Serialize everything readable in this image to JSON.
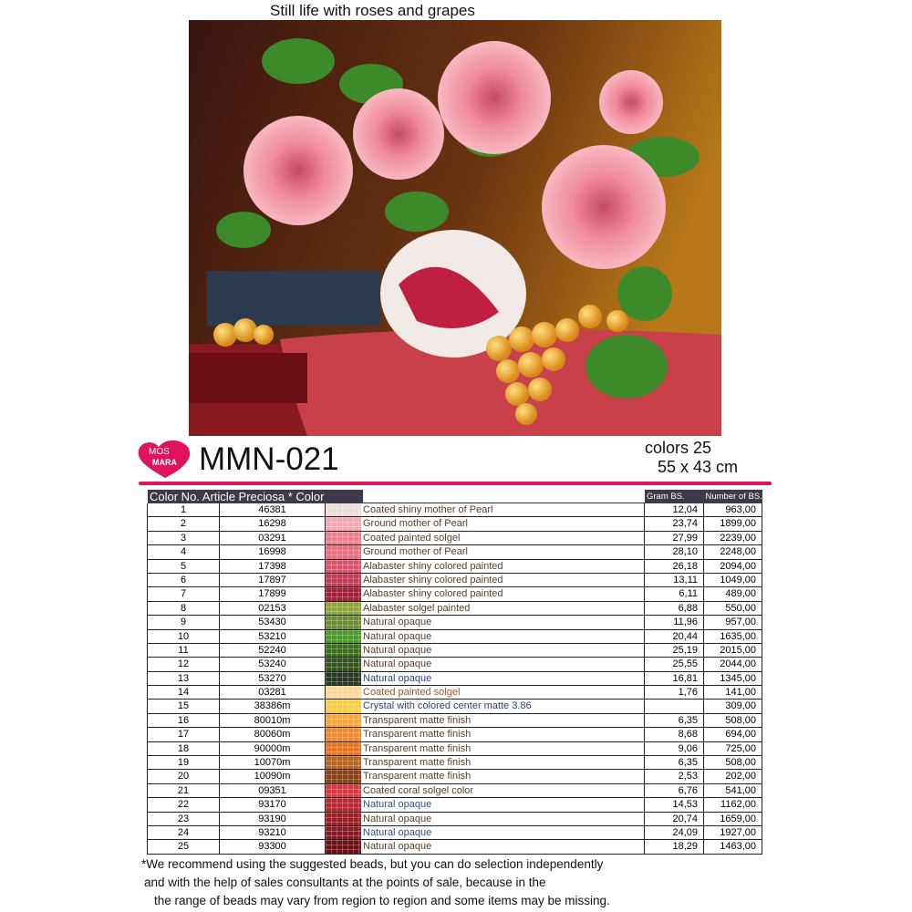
{
  "title": "Still life with roses and grapes",
  "logo": {
    "line1": "MOS",
    "line2": "MARA",
    "color": "#e0135f"
  },
  "code": "MMN-021",
  "colors_label": "colors 25",
  "size_label": "55 x 43 cm",
  "table": {
    "header_left": "Color No. Article Preciosa * Color",
    "header_gram": "Gram BS.",
    "header_number": "Number of BS.",
    "rows": [
      {
        "no": "1",
        "article": "46381",
        "color": "#ecdcdc",
        "desc": "Coated shiny mother of Pearl",
        "gram": "12,04",
        "number": "963,00"
      },
      {
        "no": "2",
        "article": "16298",
        "color": "#f3a9b4",
        "desc": "Ground mother of Pearl",
        "gram": "23,74",
        "number": "1899,00"
      },
      {
        "no": "3",
        "article": "03291",
        "color": "#ee7f8c",
        "desc": "Coated painted solgel",
        "gram": "27,99",
        "number": "2239,00"
      },
      {
        "no": "4",
        "article": "16998",
        "color": "#e8707f",
        "desc": "Ground mother of Pearl",
        "gram": "28,10",
        "number": "2248,00"
      },
      {
        "no": "5",
        "article": "17398",
        "color": "#d95468",
        "desc": "Alabaster shiny colored painted",
        "gram": "26,18",
        "number": "2094,00"
      },
      {
        "no": "6",
        "article": "17897",
        "color": "#c33a56",
        "desc": "Alabaster shiny colored painted",
        "gram": "13,11",
        "number": "1049,00"
      },
      {
        "no": "7",
        "article": "17899",
        "color": "#a2203a",
        "desc": "Alabaster shiny colored painted",
        "gram": "6,11",
        "number": "489,00"
      },
      {
        "no": "8",
        "article": "02153",
        "color": "#8ea43a",
        "desc": "Alabaster solgel painted",
        "gram": "6,88",
        "number": "550,00"
      },
      {
        "no": "9",
        "article": "53430",
        "color": "#6e8c34",
        "desc": "Natural opaque",
        "gram": "11,96",
        "number": "957,00"
      },
      {
        "no": "10",
        "article": "53210",
        "color": "#4c9a2a",
        "desc": "Natural opaque",
        "gram": "20,44",
        "number": "1635,00"
      },
      {
        "no": "11",
        "article": "52240",
        "color": "#3f6f1c",
        "desc": "Natural opaque",
        "gram": "25,19",
        "number": "2015,00"
      },
      {
        "no": "12",
        "article": "53240",
        "color": "#35561c",
        "desc": "Natural opaque",
        "gram": "25,55",
        "number": "2044,00"
      },
      {
        "no": "13",
        "article": "53270",
        "color": "#283a26",
        "desc": "Natural opaque",
        "gram": "16,81",
        "number": "1345,00",
        "desc_color": "#2d3f8a"
      },
      {
        "no": "14",
        "article": "03281",
        "color": "#fbd898",
        "desc": "Coated painted solgel",
        "gram": "1,76",
        "number": "141,00",
        "desc_color": "#a0522d"
      },
      {
        "no": "15",
        "article": "38386m",
        "color": "#f6cf45",
        "desc": "Crystal with colored center matte 3.86",
        "gram": "",
        "number": "309,00",
        "desc_color": "#2d3f6a"
      },
      {
        "no": "16",
        "article": "80010m",
        "color": "#f8a63a",
        "desc": "Transparent matte finish",
        "gram": "6,35",
        "number": "508,00"
      },
      {
        "no": "17",
        "article": "80060m",
        "color": "#f08a30",
        "desc": "Transparent matte finish",
        "gram": "8,68",
        "number": "694,00"
      },
      {
        "no": "18",
        "article": "90000m",
        "color": "#e67520",
        "desc": "Transparent matte finish",
        "gram": "9,06",
        "number": "725,00"
      },
      {
        "no": "19",
        "article": "10070m",
        "color": "#b8641e",
        "desc": "Transparent matte finish",
        "gram": "6,35",
        "number": "508,00"
      },
      {
        "no": "20",
        "article": "10090m",
        "color": "#8a4218",
        "desc": "Transparent matte finish",
        "gram": "2,53",
        "number": "202,00"
      },
      {
        "no": "21",
        "article": "09351",
        "color": "#d8393e",
        "desc": "Coated coral solgel color",
        "gram": "6,76",
        "number": "541,00"
      },
      {
        "no": "22",
        "article": "93170",
        "color": "#b82832",
        "desc": "Natural opaque",
        "gram": "14,53",
        "number": "1162,00",
        "desc_color": "#2d4f8a"
      },
      {
        "no": "23",
        "article": "93190",
        "color": "#a01c24",
        "desc": "Natural opaque",
        "gram": "20,74",
        "number": "1659,00"
      },
      {
        "no": "24",
        "article": "93210",
        "color": "#861a20",
        "desc": "Natural opaque",
        "gram": "24,09",
        "number": "1927,00",
        "desc_color": "#2d4f8a"
      },
      {
        "no": "25",
        "article": "93300",
        "color": "#6e1216",
        "desc": "Natural opaque",
        "gram": "18,29",
        "number": "1463,00"
      }
    ]
  },
  "note": {
    "line1": "*We recommend using the suggested beads, but you can do selection independently",
    "line2": "and with the help of sales consultants at the points of sale, because in the",
    "line3": "the range of beads may vary from region to region and some items may be missing."
  }
}
